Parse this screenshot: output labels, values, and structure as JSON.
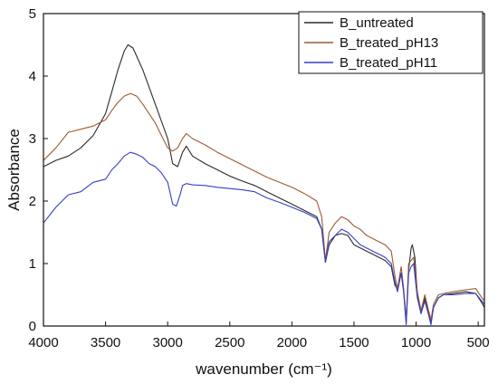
{
  "chart_data": {
    "type": "line",
    "title": "",
    "xlabel": "wavenumber (cm⁻¹)",
    "ylabel": "Absorbance",
    "xlim": [
      4000,
      450
    ],
    "ylim": [
      0,
      5
    ],
    "x_reversed": true,
    "x_ticks": [
      4000,
      3500,
      3000,
      2500,
      2000,
      1500,
      1000,
      500
    ],
    "y_ticks": [
      0,
      1,
      2,
      3,
      4,
      5
    ],
    "grid": false,
    "legend_position": "top-right",
    "series": [
      {
        "name": "B_untreated",
        "color": "#2b2b2b",
        "points": [
          [
            4000,
            2.55
          ],
          [
            3900,
            2.65
          ],
          [
            3800,
            2.72
          ],
          [
            3700,
            2.85
          ],
          [
            3600,
            3.05
          ],
          [
            3500,
            3.4
          ],
          [
            3450,
            3.75
          ],
          [
            3400,
            4.1
          ],
          [
            3350,
            4.4
          ],
          [
            3320,
            4.5
          ],
          [
            3280,
            4.45
          ],
          [
            3200,
            4.1
          ],
          [
            3100,
            3.55
          ],
          [
            3000,
            3.0
          ],
          [
            2960,
            2.6
          ],
          [
            2920,
            2.55
          ],
          [
            2880,
            2.78
          ],
          [
            2850,
            2.88
          ],
          [
            2800,
            2.72
          ],
          [
            2700,
            2.6
          ],
          [
            2600,
            2.5
          ],
          [
            2500,
            2.4
          ],
          [
            2400,
            2.32
          ],
          [
            2300,
            2.25
          ],
          [
            2200,
            2.15
          ],
          [
            2100,
            2.05
          ],
          [
            2000,
            1.95
          ],
          [
            1900,
            1.85
          ],
          [
            1800,
            1.75
          ],
          [
            1760,
            1.55
          ],
          [
            1730,
            1.02
          ],
          [
            1700,
            1.3
          ],
          [
            1650,
            1.45
          ],
          [
            1600,
            1.48
          ],
          [
            1550,
            1.45
          ],
          [
            1500,
            1.3
          ],
          [
            1450,
            1.25
          ],
          [
            1400,
            1.2
          ],
          [
            1350,
            1.15
          ],
          [
            1300,
            1.1
          ],
          [
            1250,
            1.05
          ],
          [
            1200,
            0.95
          ],
          [
            1170,
            0.65
          ],
          [
            1150,
            0.6
          ],
          [
            1120,
            0.85
          ],
          [
            1100,
            0.55
          ],
          [
            1080,
            0.05
          ],
          [
            1060,
            0.9
          ],
          [
            1040,
            1.25
          ],
          [
            1030,
            1.3
          ],
          [
            1010,
            1.1
          ],
          [
            990,
            0.5
          ],
          [
            960,
            0.2
          ],
          [
            930,
            0.45
          ],
          [
            900,
            0.2
          ],
          [
            880,
            0.05
          ],
          [
            860,
            0.3
          ],
          [
            820,
            0.45
          ],
          [
            780,
            0.5
          ],
          [
            700,
            0.52
          ],
          [
            600,
            0.55
          ],
          [
            520,
            0.52
          ],
          [
            480,
            0.4
          ],
          [
            450,
            0.3
          ]
        ]
      },
      {
        "name": "B_treated_pH13",
        "color": "#9b5a32",
        "points": [
          [
            4000,
            2.65
          ],
          [
            3900,
            2.85
          ],
          [
            3800,
            3.1
          ],
          [
            3700,
            3.15
          ],
          [
            3600,
            3.2
          ],
          [
            3500,
            3.3
          ],
          [
            3450,
            3.45
          ],
          [
            3400,
            3.58
          ],
          [
            3350,
            3.68
          ],
          [
            3300,
            3.72
          ],
          [
            3250,
            3.68
          ],
          [
            3200,
            3.55
          ],
          [
            3150,
            3.4
          ],
          [
            3100,
            3.25
          ],
          [
            3050,
            3.05
          ],
          [
            3000,
            2.85
          ],
          [
            2960,
            2.8
          ],
          [
            2920,
            2.85
          ],
          [
            2880,
            3.0
          ],
          [
            2850,
            3.08
          ],
          [
            2800,
            3.0
          ],
          [
            2700,
            2.9
          ],
          [
            2600,
            2.78
          ],
          [
            2500,
            2.68
          ],
          [
            2400,
            2.58
          ],
          [
            2300,
            2.48
          ],
          [
            2200,
            2.38
          ],
          [
            2100,
            2.3
          ],
          [
            2000,
            2.22
          ],
          [
            1900,
            2.12
          ],
          [
            1800,
            2.0
          ],
          [
            1760,
            1.75
          ],
          [
            1730,
            1.05
          ],
          [
            1700,
            1.5
          ],
          [
            1650,
            1.65
          ],
          [
            1600,
            1.75
          ],
          [
            1550,
            1.7
          ],
          [
            1500,
            1.6
          ],
          [
            1450,
            1.55
          ],
          [
            1400,
            1.45
          ],
          [
            1350,
            1.4
          ],
          [
            1300,
            1.35
          ],
          [
            1250,
            1.3
          ],
          [
            1200,
            1.2
          ],
          [
            1170,
            0.8
          ],
          [
            1150,
            0.6
          ],
          [
            1120,
            0.95
          ],
          [
            1100,
            0.6
          ],
          [
            1080,
            0.1
          ],
          [
            1060,
            1.0
          ],
          [
            1040,
            1.05
          ],
          [
            1020,
            1.1
          ],
          [
            990,
            0.55
          ],
          [
            960,
            0.25
          ],
          [
            930,
            0.5
          ],
          [
            900,
            0.25
          ],
          [
            880,
            0.1
          ],
          [
            860,
            0.35
          ],
          [
            820,
            0.5
          ],
          [
            780,
            0.52
          ],
          [
            700,
            0.55
          ],
          [
            600,
            0.58
          ],
          [
            520,
            0.6
          ],
          [
            480,
            0.48
          ],
          [
            450,
            0.4
          ]
        ]
      },
      {
        "name": "B_treated_pH11",
        "color": "#3440c8",
        "points": [
          [
            4000,
            1.65
          ],
          [
            3900,
            1.9
          ],
          [
            3800,
            2.1
          ],
          [
            3700,
            2.15
          ],
          [
            3600,
            2.3
          ],
          [
            3500,
            2.35
          ],
          [
            3450,
            2.5
          ],
          [
            3400,
            2.6
          ],
          [
            3350,
            2.72
          ],
          [
            3300,
            2.78
          ],
          [
            3250,
            2.75
          ],
          [
            3200,
            2.7
          ],
          [
            3150,
            2.6
          ],
          [
            3100,
            2.55
          ],
          [
            3050,
            2.45
          ],
          [
            3000,
            2.3
          ],
          [
            2960,
            1.95
          ],
          [
            2930,
            1.92
          ],
          [
            2900,
            2.1
          ],
          [
            2880,
            2.25
          ],
          [
            2850,
            2.28
          ],
          [
            2800,
            2.26
          ],
          [
            2700,
            2.25
          ],
          [
            2600,
            2.22
          ],
          [
            2500,
            2.2
          ],
          [
            2400,
            2.18
          ],
          [
            2300,
            2.15
          ],
          [
            2200,
            2.05
          ],
          [
            2100,
            1.98
          ],
          [
            2000,
            1.9
          ],
          [
            1900,
            1.82
          ],
          [
            1800,
            1.72
          ],
          [
            1760,
            1.55
          ],
          [
            1730,
            1.02
          ],
          [
            1700,
            1.35
          ],
          [
            1650,
            1.45
          ],
          [
            1600,
            1.55
          ],
          [
            1550,
            1.5
          ],
          [
            1500,
            1.4
          ],
          [
            1450,
            1.3
          ],
          [
            1400,
            1.25
          ],
          [
            1350,
            1.2
          ],
          [
            1300,
            1.15
          ],
          [
            1250,
            1.1
          ],
          [
            1200,
            1.0
          ],
          [
            1170,
            0.7
          ],
          [
            1150,
            0.55
          ],
          [
            1120,
            0.85
          ],
          [
            1100,
            0.55
          ],
          [
            1080,
            0.02
          ],
          [
            1060,
            0.85
          ],
          [
            1040,
            0.95
          ],
          [
            1020,
            1.0
          ],
          [
            990,
            0.45
          ],
          [
            960,
            0.2
          ],
          [
            930,
            0.4
          ],
          [
            900,
            0.18
          ],
          [
            880,
            0.02
          ],
          [
            860,
            0.3
          ],
          [
            820,
            0.45
          ],
          [
            780,
            0.5
          ],
          [
            700,
            0.5
          ],
          [
            600,
            0.52
          ],
          [
            520,
            0.52
          ],
          [
            480,
            0.42
          ],
          [
            450,
            0.35
          ]
        ]
      }
    ]
  }
}
